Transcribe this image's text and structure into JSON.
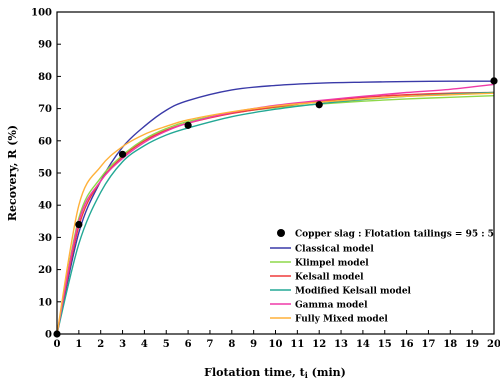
{
  "chart_data": {
    "type": "line",
    "xlabel": "Flotation time, t",
    "xlabel_sub": "i",
    "xlabel_unit": " (min)",
    "ylabel": "Recovery, R (%)",
    "xlim": [
      0,
      20
    ],
    "ylim": [
      0,
      100
    ],
    "xticks": [
      0,
      1,
      2,
      3,
      4,
      5,
      6,
      7,
      8,
      9,
      10,
      11,
      12,
      13,
      14,
      15,
      16,
      17,
      18,
      19,
      20
    ],
    "yticks": [
      0,
      10,
      20,
      30,
      40,
      50,
      60,
      70,
      80,
      90,
      100
    ],
    "grid": false,
    "legend_position": "bottom-right",
    "scatter": {
      "name": "Copper slag : Flotation tailings = 95 : 5",
      "color": "#000000",
      "x": [
        0,
        1,
        3,
        6,
        12,
        20
      ],
      "y": [
        0,
        34,
        55.8,
        64.8,
        71.2,
        78.6
      ]
    },
    "series": [
      {
        "name": "Classical model",
        "color": "#3a3aa8",
        "x": [
          0,
          1,
          2,
          3,
          4,
          5,
          6,
          8,
          10,
          12,
          14,
          16,
          18,
          20
        ],
        "y": [
          0,
          31.5,
          47.5,
          58,
          64.5,
          69.5,
          72.5,
          75.8,
          77.2,
          77.9,
          78.2,
          78.4,
          78.5,
          78.5
        ]
      },
      {
        "name": "Klimpel model",
        "color": "#8ed84a",
        "x": [
          0,
          1,
          2,
          3,
          4,
          5,
          6,
          8,
          10,
          12,
          14,
          16,
          18,
          20
        ],
        "y": [
          0,
          36,
          48.5,
          55.5,
          60.5,
          63.8,
          66,
          68.6,
          70.3,
          71.4,
          72.3,
          73,
          73.5,
          74
        ]
      },
      {
        "name": "Kelsall model",
        "color": "#ef3b3b",
        "x": [
          0,
          1,
          2,
          3,
          4,
          5,
          6,
          8,
          10,
          12,
          14,
          16,
          18,
          20
        ],
        "y": [
          0,
          33.5,
          47.5,
          55,
          60,
          63.3,
          65.5,
          68.5,
          70.5,
          72.2,
          73.5,
          74.3,
          74.8,
          75
        ]
      },
      {
        "name": "Modified Kelsall model",
        "color": "#23a895",
        "x": [
          0,
          1,
          2,
          3,
          4,
          5,
          6,
          8,
          10,
          12,
          14,
          16,
          18,
          20
        ],
        "y": [
          0,
          28,
          44,
          53.5,
          58.5,
          61.8,
          64,
          67.5,
          69.8,
          71.5,
          72.8,
          73.8,
          74.5,
          75
        ]
      },
      {
        "name": "Gamma model",
        "color": "#ef3aa8",
        "x": [
          0,
          1,
          2,
          3,
          4,
          5,
          6,
          8,
          10,
          12,
          14,
          16,
          18,
          20
        ],
        "y": [
          0,
          35,
          47.5,
          54.5,
          59.5,
          63,
          65.5,
          68.8,
          71,
          72.5,
          73.8,
          75,
          76,
          77.5
        ]
      },
      {
        "name": "Fully Mixed model",
        "color": "#ffb13a",
        "x": [
          0,
          1,
          2,
          3,
          4,
          5,
          6,
          8,
          10,
          12,
          14,
          16,
          18,
          20
        ],
        "y": [
          0,
          40,
          52,
          58.2,
          62,
          64.5,
          66.5,
          69,
          70.8,
          72,
          73,
          73.8,
          74.3,
          74.8
        ]
      }
    ]
  }
}
